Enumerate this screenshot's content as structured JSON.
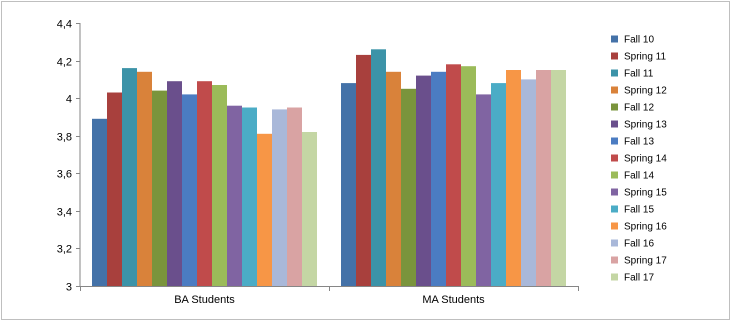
{
  "chart_data": {
    "type": "bar",
    "title": "",
    "xlabel": "",
    "ylabel": "",
    "categories": [
      "BA Students",
      "MA Students"
    ],
    "ylim": [
      3,
      4.4
    ],
    "yticks": [
      "3",
      "3,2",
      "3,4",
      "3,6",
      "3,8",
      "4",
      "4,2",
      "4,4"
    ],
    "ytick_values": [
      3,
      3.2,
      3.4,
      3.6,
      3.8,
      4,
      4.2,
      4.4
    ],
    "grid": false,
    "legend_position": "right",
    "series": [
      {
        "name": "Fall 10",
        "color": "#4472A8",
        "values": [
          3.89,
          4.08
        ]
      },
      {
        "name": "Spring 11",
        "color": "#A8403D",
        "values": [
          4.03,
          4.23
        ]
      },
      {
        "name": "Fall 11",
        "color": "#3C93A8",
        "values": [
          4.16,
          4.26
        ]
      },
      {
        "name": "Spring 12",
        "color": "#D9823A",
        "values": [
          4.14,
          4.14
        ]
      },
      {
        "name": "Fall 12",
        "color": "#7A943C",
        "values": [
          4.04,
          4.05
        ]
      },
      {
        "name": "Spring 13",
        "color": "#6A4F8C",
        "values": [
          4.09,
          4.12
        ]
      },
      {
        "name": "Fall 13",
        "color": "#4B7CC2",
        "values": [
          4.02,
          4.14
        ]
      },
      {
        "name": "Spring 14",
        "color": "#C04B4B",
        "values": [
          4.09,
          4.18
        ]
      },
      {
        "name": "Fall 14",
        "color": "#9BBB59",
        "values": [
          4.07,
          4.17
        ]
      },
      {
        "name": "Spring 15",
        "color": "#8064A2",
        "values": [
          3.96,
          4.02
        ]
      },
      {
        "name": "Fall 15",
        "color": "#4BACC6",
        "values": [
          3.95,
          4.08
        ]
      },
      {
        "name": "Spring 16",
        "color": "#F79646",
        "values": [
          3.81,
          4.15
        ]
      },
      {
        "name": "Fall 16",
        "color": "#A9B8D9",
        "values": [
          3.94,
          4.1
        ]
      },
      {
        "name": "Spring 17",
        "color": "#D9A3A3",
        "values": [
          3.95,
          4.15
        ]
      },
      {
        "name": "Fall 17",
        "color": "#C4D6A4",
        "values": [
          3.82,
          4.15
        ]
      }
    ]
  }
}
